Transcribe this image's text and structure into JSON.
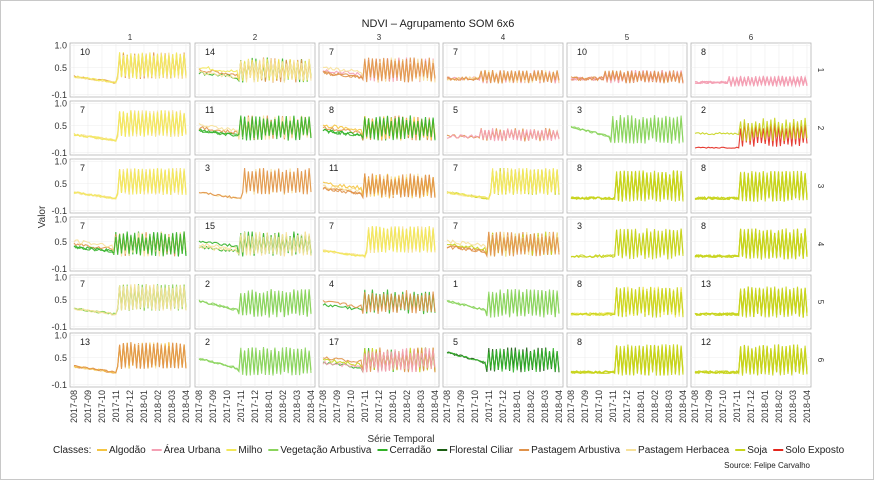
{
  "chart_data": {
    "type": "line",
    "title": "NDVI – Agrupamento SOM 6x6",
    "xlabel": "Série Temporal",
    "ylabel": "Valor",
    "y_ticks": [
      "1.0",
      "0.5",
      "-0.1"
    ],
    "y_tick_values": [
      1.0,
      0.5,
      -0.1
    ],
    "ylim": [
      -0.15,
      1.05
    ],
    "x_ticks": [
      "2017-08",
      "2017-09",
      "2017-10",
      "2017-11",
      "2017-12",
      "2018-01",
      "2018-02",
      "2018-03",
      "2018-04"
    ],
    "column_labels": [
      "1",
      "2",
      "3",
      "4",
      "5",
      "6"
    ],
    "row_labels": [
      "1",
      "2",
      "3",
      "4",
      "5",
      "6"
    ],
    "grid": true,
    "legend_position": "bottom",
    "legend_title": "Classes:",
    "classes": [
      {
        "name": "Algodão",
        "color": "#f5c542"
      },
      {
        "name": "Área Urbana",
        "color": "#f4a0b4"
      },
      {
        "name": "Milho",
        "color": "#f2e85a"
      },
      {
        "name": "Vegetação Arbustiva",
        "color": "#8ad45c"
      },
      {
        "name": "Cerradão",
        "color": "#32b228"
      },
      {
        "name": "Florestal Ciliar",
        "color": "#1a5e12"
      },
      {
        "name": "Pastagem Arbustiva",
        "color": "#e0924a"
      },
      {
        "name": "Pastagem Herbacea",
        "color": "#f7e19a"
      },
      {
        "name": "Soja",
        "color": "#c8d41c"
      },
      {
        "name": "Solo Exposto",
        "color": "#e3261c"
      }
    ],
    "panels": [
      {
        "row": 1,
        "col": 1,
        "count": "10",
        "colors": [
          "#f2e85a",
          "#e0924a",
          "#f7e19a"
        ],
        "shape": "crop_early"
      },
      {
        "row": 1,
        "col": 2,
        "count": "14",
        "colors": [
          "#32b228",
          "#e0924a",
          "#f2e85a",
          "#f7e19a"
        ],
        "shape": "mixed"
      },
      {
        "row": 1,
        "col": 3,
        "count": "7",
        "colors": [
          "#e0924a",
          "#f4a0b4",
          "#f7e19a"
        ],
        "shape": "mixed"
      },
      {
        "row": 1,
        "col": 4,
        "count": "7",
        "colors": [
          "#e0924a",
          "#f4a0b4",
          "#f7e19a"
        ],
        "shape": "flat_osc"
      },
      {
        "row": 1,
        "col": 5,
        "count": "10",
        "colors": [
          "#f4a0b4",
          "#e0924a"
        ],
        "shape": "flat_osc"
      },
      {
        "row": 1,
        "col": 6,
        "count": "8",
        "colors": [
          "#f4a0b4"
        ],
        "shape": "flat_osc_low"
      },
      {
        "row": 2,
        "col": 1,
        "count": "7",
        "colors": [
          "#f7e19a",
          "#f2e85a"
        ],
        "shape": "crop"
      },
      {
        "row": 2,
        "col": 2,
        "count": "11",
        "colors": [
          "#32b228",
          "#e0924a",
          "#f7e19a"
        ],
        "shape": "mixed"
      },
      {
        "row": 2,
        "col": 3,
        "count": "8",
        "colors": [
          "#32b228",
          "#e0924a",
          "#f5c542"
        ],
        "shape": "mixed"
      },
      {
        "row": 2,
        "col": 4,
        "count": "5",
        "colors": [
          "#e0924a",
          "#f4a0b4"
        ],
        "shape": "flat_osc"
      },
      {
        "row": 2,
        "col": 5,
        "count": "3",
        "colors": [
          "#8ad45c"
        ],
        "shape": "veg"
      },
      {
        "row": 2,
        "col": 6,
        "count": "2",
        "colors": [
          "#e3261c",
          "#c8d41c"
        ],
        "shape": "solo"
      },
      {
        "row": 3,
        "col": 1,
        "count": "7",
        "colors": [
          "#f7e19a",
          "#f2e85a"
        ],
        "shape": "crop"
      },
      {
        "row": 3,
        "col": 2,
        "count": "3",
        "colors": [
          "#f7e19a",
          "#e0924a"
        ],
        "shape": "crop"
      },
      {
        "row": 3,
        "col": 3,
        "count": "11",
        "colors": [
          "#e0924a",
          "#f7e19a",
          "#f5c542"
        ],
        "shape": "mixed"
      },
      {
        "row": 3,
        "col": 4,
        "count": "7",
        "colors": [
          "#f2e85a",
          "#c8d41c",
          "#f7e19a"
        ],
        "shape": "crop"
      },
      {
        "row": 3,
        "col": 5,
        "count": "8",
        "colors": [
          "#c8d41c"
        ],
        "shape": "soja"
      },
      {
        "row": 3,
        "col": 6,
        "count": "8",
        "colors": [
          "#c8d41c"
        ],
        "shape": "soja"
      },
      {
        "row": 4,
        "col": 1,
        "count": "7",
        "colors": [
          "#32b228",
          "#e0924a",
          "#f7e19a"
        ],
        "shape": "mixed"
      },
      {
        "row": 4,
        "col": 2,
        "count": "15",
        "colors": [
          "#32b228",
          "#f7e19a"
        ],
        "shape": "mixed"
      },
      {
        "row": 4,
        "col": 3,
        "count": "7",
        "colors": [
          "#f7e19a",
          "#f2e85a"
        ],
        "shape": "crop"
      },
      {
        "row": 4,
        "col": 4,
        "count": "7",
        "colors": [
          "#e0924a",
          "#c8d41c",
          "#f7e19a"
        ],
        "shape": "mixed"
      },
      {
        "row": 4,
        "col": 5,
        "count": "3",
        "colors": [
          "#c8d41c"
        ],
        "shape": "soja"
      },
      {
        "row": 4,
        "col": 6,
        "count": "8",
        "colors": [
          "#c8d41c"
        ],
        "shape": "soja"
      },
      {
        "row": 5,
        "col": 1,
        "count": "7",
        "colors": [
          "#8ad45c",
          "#f7e19a"
        ],
        "shape": "crop"
      },
      {
        "row": 5,
        "col": 2,
        "count": "2",
        "colors": [
          "#8ad45c"
        ],
        "shape": "veg"
      },
      {
        "row": 5,
        "col": 3,
        "count": "4",
        "colors": [
          "#32b228",
          "#e0924a",
          "#8ad45c"
        ],
        "shape": "mixed"
      },
      {
        "row": 5,
        "col": 4,
        "count": "1",
        "colors": [
          "#8ad45c"
        ],
        "shape": "veg"
      },
      {
        "row": 5,
        "col": 5,
        "count": "8",
        "colors": [
          "#f2e85a",
          "#c8d41c"
        ],
        "shape": "soja"
      },
      {
        "row": 5,
        "col": 6,
        "count": "13",
        "colors": [
          "#c8d41c"
        ],
        "shape": "soja"
      },
      {
        "row": 6,
        "col": 1,
        "count": "13",
        "colors": [
          "#e0924a",
          "#f7e19a",
          "#f5c542"
        ],
        "shape": "crop"
      },
      {
        "row": 6,
        "col": 2,
        "count": "2",
        "colors": [
          "#8ad45c"
        ],
        "shape": "veg"
      },
      {
        "row": 6,
        "col": 3,
        "count": "17",
        "colors": [
          "#32b228",
          "#c8d41c",
          "#e0924a",
          "#f4a0b4"
        ],
        "shape": "mixed"
      },
      {
        "row": 6,
        "col": 4,
        "count": "5",
        "colors": [
          "#1a5e12",
          "#32b228"
        ],
        "shape": "forest"
      },
      {
        "row": 6,
        "col": 5,
        "count": "8",
        "colors": [
          "#c8d41c"
        ],
        "shape": "soja"
      },
      {
        "row": 6,
        "col": 6,
        "count": "12",
        "colors": [
          "#c8d41c"
        ],
        "shape": "soja"
      }
    ]
  },
  "source": "Source: Felipe Carvalho"
}
